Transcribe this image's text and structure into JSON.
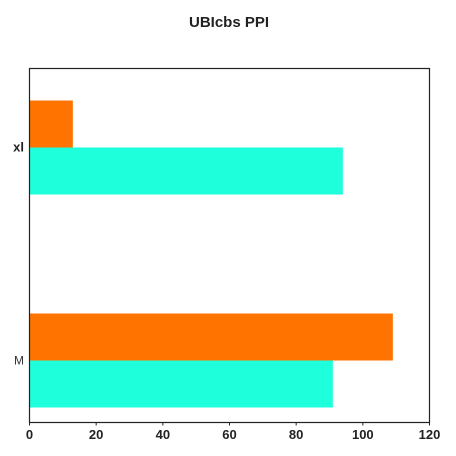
{
  "chart_data": {
    "type": "bar",
    "orientation": "horizontal",
    "title": "UBIcbs PPI",
    "categories": [
      "M",
      "xl"
    ],
    "series": [
      {
        "color": "#1effdc",
        "values": [
          91,
          94
        ]
      },
      {
        "color": "#ff7300",
        "values": [
          109,
          13
        ]
      }
    ],
    "xlim": [
      0,
      120
    ],
    "xticks": [
      0,
      20,
      40,
      60,
      80,
      100,
      120
    ],
    "grid": false,
    "legend": "none"
  }
}
